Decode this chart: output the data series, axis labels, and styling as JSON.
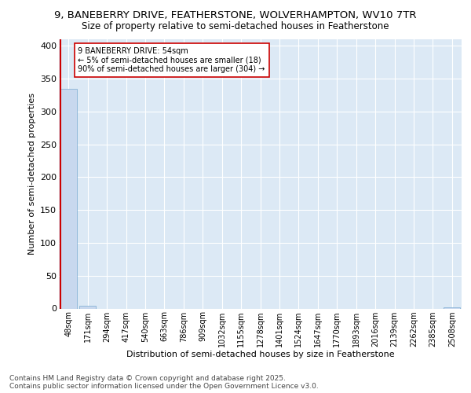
{
  "title1": "9, BANEBERRY DRIVE, FEATHERSTONE, WOLVERHAMPTON, WV10 7TR",
  "title2": "Size of property relative to semi-detached houses in Featherstone",
  "xlabel": "Distribution of semi-detached houses by size in Featherstone",
  "ylabel": "Number of semi-detached properties",
  "footer1": "Contains HM Land Registry data © Crown copyright and database right 2025.",
  "footer2": "Contains public sector information licensed under the Open Government Licence v3.0.",
  "categories": [
    "48sqm",
    "171sqm",
    "294sqm",
    "417sqm",
    "540sqm",
    "663sqm",
    "786sqm",
    "909sqm",
    "1032sqm",
    "1155sqm",
    "1278sqm",
    "1401sqm",
    "1524sqm",
    "1647sqm",
    "1770sqm",
    "1893sqm",
    "2016sqm",
    "2139sqm",
    "2262sqm",
    "2385sqm",
    "2508sqm"
  ],
  "values": [
    335,
    4,
    0,
    0,
    0,
    0,
    0,
    0,
    0,
    0,
    0,
    0,
    0,
    0,
    0,
    0,
    0,
    0,
    0,
    0,
    2
  ],
  "bar_color": "#c8d8ee",
  "bar_edge_color": "#7aaad0",
  "property_line_color": "#cc0000",
  "annotation_text": "9 BANEBERRY DRIVE: 54sqm\n← 5% of semi-detached houses are smaller (18)\n90% of semi-detached houses are larger (304) →",
  "annotation_box_color": "#ffffff",
  "annotation_box_edge": "#cc0000",
  "ylim": [
    0,
    410
  ],
  "yticks": [
    0,
    50,
    100,
    150,
    200,
    250,
    300,
    350,
    400
  ],
  "plot_bg": "#dce9f5",
  "title_fontsize": 9.5,
  "subtitle_fontsize": 8.5,
  "ylabel_fontsize": 8,
  "xlabel_fontsize": 8,
  "tick_fontsize": 7,
  "footer_fontsize": 6.5
}
